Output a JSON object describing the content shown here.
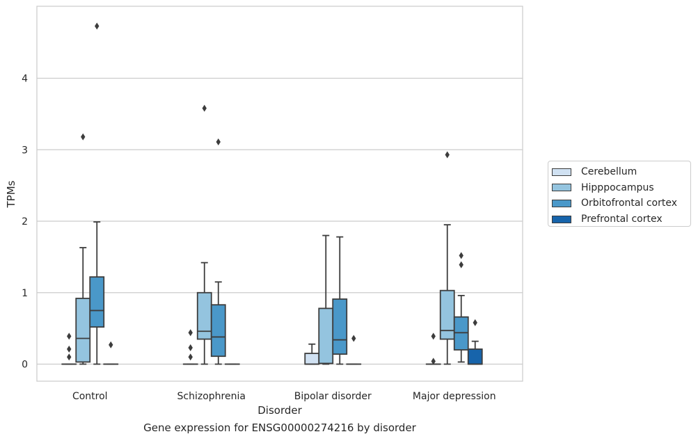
{
  "chart_data": {
    "type": "box",
    "title": "",
    "xlabel": "Disorder",
    "ylabel": "TPMs",
    "caption": "Gene expression for ENSG00000274216 by disorder",
    "ylim": [
      -0.23,
      4.98
    ],
    "yticks": [
      0,
      1,
      2,
      3,
      4
    ],
    "grid": "horizontal",
    "legend_position": "right",
    "categories": [
      "Control",
      "Schizophrenia",
      "Bipolar disorder",
      "Major depression"
    ],
    "series": [
      {
        "name": "Cerebellum",
        "color": "#d0e1f2",
        "boxes": [
          {
            "whislo": 0,
            "q1": 0,
            "med": 0,
            "q3": 0,
            "whishi": 0,
            "fliers": [
              0.1,
              0.21,
              0.39
            ]
          },
          {
            "whislo": 0,
            "q1": 0,
            "med": 0,
            "q3": 0,
            "whishi": 0,
            "fliers": [
              0.1,
              0.23,
              0.44
            ]
          },
          {
            "whislo": 0,
            "q1": 0,
            "med": 0,
            "q3": 0.15,
            "whishi": 0.28,
            "fliers": []
          },
          {
            "whislo": 0,
            "q1": 0,
            "med": 0,
            "q3": 0,
            "whishi": 0,
            "fliers": [
              0.04,
              0.39
            ]
          }
        ]
      },
      {
        "name": "Hipppocampus",
        "color": "#94c4df",
        "boxes": [
          {
            "whislo": 0,
            "q1": 0.03,
            "med": 0.36,
            "q3": 0.92,
            "whishi": 1.63,
            "fliers": [
              3.18
            ]
          },
          {
            "whislo": 0,
            "q1": 0.35,
            "med": 0.46,
            "q3": 1.0,
            "whishi": 1.42,
            "fliers": [
              3.58
            ]
          },
          {
            "whislo": 0,
            "q1": 0.01,
            "med": 0.01,
            "q3": 0.78,
            "whishi": 1.8,
            "fliers": []
          },
          {
            "whislo": 0,
            "q1": 0.35,
            "med": 0.47,
            "q3": 1.03,
            "whishi": 1.95,
            "fliers": [
              2.93
            ]
          }
        ]
      },
      {
        "name": "Orbitofrontal cortex",
        "color": "#4a98c9",
        "boxes": [
          {
            "whislo": 0,
            "q1": 0.52,
            "med": 0.75,
            "q3": 1.22,
            "whishi": 1.99,
            "fliers": [
              4.73
            ]
          },
          {
            "whislo": 0,
            "q1": 0.11,
            "med": 0.38,
            "q3": 0.83,
            "whishi": 1.15,
            "fliers": [
              3.11
            ]
          },
          {
            "whislo": 0,
            "q1": 0.14,
            "med": 0.34,
            "q3": 0.91,
            "whishi": 1.78,
            "fliers": []
          },
          {
            "whislo": 0.03,
            "q1": 0.2,
            "med": 0.44,
            "q3": 0.66,
            "whishi": 0.96,
            "fliers": [
              1.39,
              1.52
            ]
          }
        ]
      },
      {
        "name": "Prefrontal cortex",
        "color": "#1764ab",
        "boxes": [
          {
            "whislo": 0,
            "q1": 0,
            "med": 0,
            "q3": 0,
            "whishi": 0,
            "fliers": [
              0.27
            ]
          },
          {
            "whislo": 0,
            "q1": 0,
            "med": 0,
            "q3": 0,
            "whishi": 0,
            "fliers": []
          },
          {
            "whislo": 0,
            "q1": 0,
            "med": 0,
            "q3": 0,
            "whishi": 0,
            "fliers": [
              0.36
            ]
          },
          {
            "whislo": 0,
            "q1": 0,
            "med": 0,
            "q3": 0.21,
            "whishi": 0.32,
            "fliers": [
              0.58
            ]
          }
        ]
      }
    ]
  }
}
